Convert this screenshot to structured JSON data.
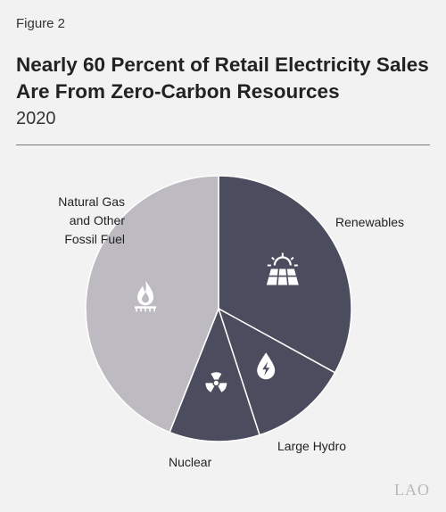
{
  "figure_label": "Figure 2",
  "title": "Nearly 60 Percent of Retail Electricity Sales Are From Zero-Carbon Resources",
  "subtitle": "2020",
  "logo_text": "LAO",
  "chart_data": {
    "type": "pie",
    "title": "Nearly 60 Percent of Retail Electricity Sales Are From Zero-Carbon Resources",
    "subtitle": "2020",
    "unit": "percent",
    "slices": [
      {
        "label": "Renewables",
        "value": 33,
        "color": "#4b4c5d",
        "icon": "solar-panel-icon"
      },
      {
        "label": "Large Hydro",
        "value": 12,
        "color": "#4b4c5d",
        "icon": "water-drop-bolt-icon"
      },
      {
        "label": "Nuclear",
        "value": 11,
        "color": "#4b4c5d",
        "icon": "radiation-icon"
      },
      {
        "label": "Natural Gas\nand Other\nFossil Fuel",
        "value": 44,
        "color": "#bdbbc1",
        "icon": "gas-flame-icon"
      }
    ]
  }
}
